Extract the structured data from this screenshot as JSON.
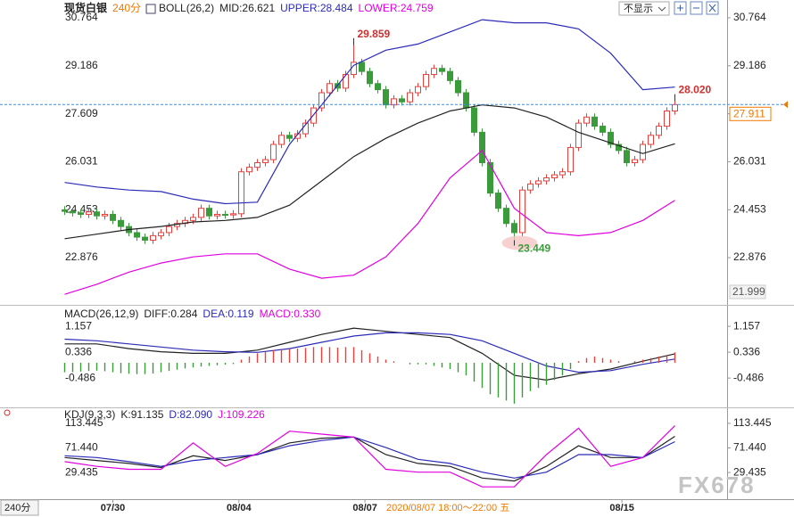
{
  "chart_data": [
    {
      "type": "candlestick",
      "title": "现货白银",
      "period": "240分",
      "indicator": "BOLL(26,2)",
      "xlim": [
        -0.5,
        76.5
      ],
      "ylim": [
        21.5,
        31.1
      ],
      "yticks": [
        30.764,
        29.186,
        27.609,
        26.031,
        24.453,
        22.876
      ],
      "up_color": "#e8413c",
      "down_color": "#3a9b3a",
      "open": [
        24.45,
        24.4,
        24.35,
        24.3,
        24.38,
        24.25,
        24.3,
        24.1,
        23.9,
        23.7,
        23.55,
        23.45,
        23.6,
        23.7,
        23.9,
        24.0,
        24.1,
        24.2,
        24.5,
        24.25,
        24.3,
        24.28,
        24.32,
        25.7,
        25.85,
        26.0,
        26.1,
        26.6,
        26.9,
        26.8,
        26.95,
        27.3,
        27.8,
        28.3,
        28.6,
        28.45,
        28.9,
        29.3,
        29.0,
        28.6,
        28.4,
        27.9,
        28.1,
        28.0,
        28.3,
        28.5,
        28.9,
        29.1,
        29.0,
        28.7,
        28.3,
        27.8,
        27.0,
        26.0,
        25.0,
        24.5,
        24.0,
        23.7,
        25.1,
        25.3,
        25.4,
        25.5,
        25.6,
        25.7,
        26.5,
        27.3,
        27.5,
        27.2,
        27.0,
        26.6,
        26.4,
        26.0,
        26.1,
        26.6,
        26.9,
        27.2,
        27.7
      ],
      "high": [
        24.57,
        24.52,
        24.47,
        24.5,
        24.5,
        24.42,
        24.42,
        24.22,
        24.02,
        23.82,
        23.67,
        23.72,
        23.82,
        24.02,
        24.12,
        24.22,
        24.32,
        24.62,
        24.62,
        24.42,
        24.42,
        24.44,
        25.82,
        25.97,
        26.12,
        26.22,
        26.72,
        27.02,
        27.02,
        27.07,
        27.42,
        27.92,
        28.42,
        28.72,
        28.72,
        29.02,
        29.859,
        29.42,
        29.12,
        28.72,
        28.52,
        28.22,
        28.22,
        28.42,
        28.62,
        29.02,
        29.22,
        29.22,
        29.12,
        28.82,
        28.42,
        27.92,
        27.12,
        26.12,
        25.12,
        24.62,
        24.12,
        25.22,
        25.42,
        25.52,
        25.62,
        25.72,
        25.82,
        26.62,
        27.42,
        27.62,
        27.62,
        27.32,
        27.12,
        26.72,
        26.52,
        26.22,
        26.72,
        27.02,
        27.32,
        27.82,
        28.02
      ],
      "low": [
        24.28,
        24.23,
        24.18,
        24.18,
        24.13,
        24.13,
        23.98,
        23.78,
        23.58,
        23.43,
        23.33,
        23.33,
        23.48,
        23.58,
        23.78,
        23.88,
        23.98,
        24.08,
        24.13,
        24.13,
        24.16,
        24.16,
        24.2,
        25.58,
        25.73,
        25.88,
        25.98,
        26.48,
        26.68,
        26.68,
        26.83,
        27.18,
        27.68,
        28.18,
        28.33,
        28.33,
        28.78,
        28.88,
        28.48,
        28.28,
        27.78,
        27.78,
        27.88,
        27.88,
        28.18,
        28.38,
        28.78,
        28.88,
        28.58,
        28.18,
        27.68,
        26.88,
        25.88,
        24.88,
        24.38,
        23.88,
        23.449,
        23.58,
        24.98,
        25.18,
        25.28,
        25.38,
        25.48,
        25.58,
        26.38,
        27.18,
        27.08,
        26.88,
        26.48,
        26.28,
        25.88,
        25.88,
        25.98,
        26.48,
        26.78,
        27.08,
        27.58
      ],
      "close": [
        24.4,
        24.35,
        24.3,
        24.38,
        24.25,
        24.3,
        24.1,
        23.9,
        23.7,
        23.55,
        23.45,
        23.6,
        23.7,
        23.9,
        24.0,
        24.1,
        24.2,
        24.5,
        24.25,
        24.3,
        24.28,
        24.32,
        25.7,
        25.85,
        26.0,
        26.1,
        26.6,
        26.9,
        26.8,
        26.95,
        27.3,
        27.8,
        28.3,
        28.6,
        28.45,
        28.9,
        29.3,
        29.0,
        28.6,
        28.4,
        27.9,
        28.1,
        28.0,
        28.3,
        28.5,
        28.9,
        29.1,
        29.0,
        28.7,
        28.3,
        27.8,
        27.0,
        26.0,
        25.0,
        24.5,
        24.0,
        23.7,
        25.1,
        25.3,
        25.4,
        25.5,
        25.6,
        25.7,
        26.5,
        27.3,
        27.5,
        27.2,
        27.0,
        26.6,
        26.4,
        26.0,
        26.1,
        26.6,
        26.9,
        27.2,
        27.7,
        27.91
      ],
      "series": [
        {
          "name": "MID:26.621",
          "color": "#222222",
          "x": [
            0,
            4,
            8,
            12,
            16,
            20,
            24,
            28,
            32,
            36,
            40,
            44,
            48,
            52,
            56,
            60,
            64,
            68,
            72,
            76
          ],
          "values": [
            23.5,
            23.65,
            23.8,
            23.9,
            24.05,
            24.1,
            24.2,
            24.6,
            25.4,
            26.2,
            26.8,
            27.3,
            27.7,
            27.9,
            27.8,
            27.5,
            27.0,
            26.65,
            26.3,
            26.621
          ]
        },
        {
          "name": "UPPER:28.484",
          "color": "#2b2bb8",
          "x": [
            0,
            4,
            8,
            12,
            16,
            20,
            24,
            28,
            32,
            36,
            40,
            44,
            48,
            52,
            56,
            60,
            64,
            68,
            72,
            76
          ],
          "values": [
            25.35,
            25.2,
            25.1,
            25.05,
            24.8,
            24.65,
            24.7,
            26.6,
            27.9,
            29.2,
            29.7,
            29.9,
            30.3,
            30.7,
            30.6,
            30.6,
            30.4,
            29.6,
            28.4,
            28.484
          ]
        },
        {
          "name": "LOWER:24.759",
          "color": "#e000e0",
          "x": [
            0,
            4,
            8,
            12,
            16,
            20,
            24,
            28,
            32,
            36,
            40,
            44,
            48,
            52,
            56,
            60,
            64,
            68,
            72,
            76
          ],
          "values": [
            21.67,
            22.0,
            22.4,
            22.7,
            22.9,
            23.0,
            23.0,
            22.5,
            22.2,
            22.3,
            22.9,
            24.0,
            25.5,
            26.4,
            24.5,
            23.7,
            23.6,
            23.7,
            24.1,
            24.759
          ]
        }
      ],
      "annotations": [
        {
          "x": 36,
          "value": 29.859,
          "label": "29.859",
          "color": "#d03030"
        },
        {
          "x": 56,
          "value": 23.449,
          "label": "23.449",
          "color": "#3a9b3a",
          "highlight": true
        },
        {
          "x": 76,
          "value": 28.02,
          "label": "28.020",
          "color": "#d03030"
        }
      ],
      "last_price": {
        "value": 27.911,
        "label": "27.911",
        "color": "#f07800"
      },
      "low_label": {
        "value": 21.999,
        "label": "21.999"
      }
    },
    {
      "type": "line",
      "indicator": "MACD(26,12,9)",
      "xlim": [
        -0.5,
        76.5
      ],
      "ylim": [
        -1.36,
        1.67
      ],
      "yticks": [
        1.157,
        0.336,
        -0.486
      ],
      "series": [
        {
          "name": "DIFF:0.284",
          "color": "#222222",
          "x": [
            0,
            4,
            8,
            12,
            16,
            20,
            24,
            28,
            32,
            36,
            40,
            44,
            48,
            52,
            56,
            60,
            64,
            68,
            72,
            76
          ],
          "values": [
            0.6,
            0.6,
            0.45,
            0.35,
            0.3,
            0.3,
            0.4,
            0.65,
            0.9,
            1.1,
            1.0,
            0.9,
            0.8,
            0.3,
            -0.4,
            -0.55,
            -0.35,
            -0.2,
            0.05,
            0.284
          ]
        },
        {
          "name": "DEA:0.119",
          "color": "#2b2bb8",
          "x": [
            0,
            4,
            8,
            12,
            16,
            20,
            24,
            28,
            32,
            36,
            40,
            44,
            48,
            52,
            56,
            60,
            64,
            68,
            72,
            76
          ],
          "values": [
            0.75,
            0.7,
            0.6,
            0.5,
            0.4,
            0.35,
            0.33,
            0.45,
            0.65,
            0.85,
            0.95,
            0.95,
            0.9,
            0.7,
            0.3,
            -0.1,
            -0.3,
            -0.25,
            -0.05,
            0.119
          ]
        },
        {
          "name": "MACD:0.330",
          "color": "#e000e0",
          "kind": "bar",
          "up_color": "#e8413c",
          "down_color": "#3a9b3a",
          "values": [
            -0.3,
            -0.3,
            -0.28,
            -0.26,
            -0.25,
            -0.27,
            -0.3,
            -0.33,
            -0.35,
            -0.36,
            -0.36,
            -0.34,
            -0.3,
            -0.26,
            -0.22,
            -0.18,
            -0.15,
            -0.12,
            -0.1,
            -0.08,
            -0.06,
            -0.04,
            0.1,
            0.2,
            0.3,
            0.35,
            0.4,
            0.42,
            0.44,
            0.45,
            0.47,
            0.5,
            0.5,
            0.5,
            0.48,
            0.5,
            0.5,
            0.4,
            0.3,
            0.2,
            0.1,
            0.05,
            0.0,
            -0.05,
            -0.05,
            -0.05,
            -0.1,
            -0.15,
            -0.2,
            -0.3,
            -0.4,
            -0.6,
            -0.8,
            -1.0,
            -1.1,
            -1.2,
            -1.3,
            -1.1,
            -0.9,
            -0.8,
            -0.7,
            -0.55,
            -0.4,
            -0.2,
            0.05,
            0.15,
            0.2,
            0.15,
            0.1,
            0.05,
            0.0,
            0.05,
            0.1,
            0.15,
            0.2,
            0.25,
            0.33
          ]
        }
      ]
    },
    {
      "type": "line",
      "indicator": "KDJ(9,3,3)",
      "xlim": [
        -0.5,
        76.5
      ],
      "ylim": [
        -16,
        133
      ],
      "yticks": [
        113.445,
        {
          "value": 71.44,
          "label": "71.440"
        },
        29.435
      ],
      "xticks": [
        {
          "value": 6,
          "label": "07/30"
        },
        {
          "value": 21.7,
          "label": "08/04"
        },
        {
          "value": 37.4,
          "label": "08/07"
        },
        {
          "value": 69.4,
          "label": "08/15"
        }
      ],
      "series": [
        {
          "name": "K:91.135",
          "color": "#222222",
          "x": [
            0,
            4,
            8,
            12,
            16,
            20,
            24,
            28,
            32,
            36,
            40,
            44,
            48,
            52,
            56,
            60,
            64,
            68,
            72,
            76
          ],
          "values": [
            55,
            50,
            45,
            38,
            58,
            50,
            60,
            80,
            88,
            90,
            60,
            45,
            40,
            20,
            15,
            40,
            75,
            55,
            55,
            91.135
          ]
        },
        {
          "name": "D:82.090",
          "color": "#2b2bb8",
          "x": [
            0,
            4,
            8,
            12,
            16,
            20,
            24,
            28,
            32,
            36,
            40,
            44,
            48,
            52,
            56,
            60,
            64,
            68,
            72,
            76
          ],
          "values": [
            58,
            55,
            48,
            40,
            50,
            55,
            60,
            75,
            84,
            90,
            72,
            52,
            45,
            30,
            20,
            30,
            60,
            60,
            55,
            82.09
          ]
        },
        {
          "name": "J:109.226",
          "color": "#e000e0",
          "x": [
            0,
            4,
            8,
            12,
            16,
            20,
            24,
            28,
            32,
            36,
            40,
            44,
            48,
            52,
            56,
            60,
            64,
            68,
            72,
            76
          ],
          "values": [
            48,
            40,
            35,
            35,
            80,
            40,
            62,
            100,
            95,
            90,
            35,
            30,
            30,
            5,
            5,
            60,
            105,
            40,
            55,
            109.226
          ]
        }
      ]
    }
  ],
  "toolbar": {
    "dropdown": "不显示"
  },
  "footer": {
    "period": "240分",
    "cursor": "2020/08/07 18:00～22:00 五"
  },
  "watermark": "FX678"
}
